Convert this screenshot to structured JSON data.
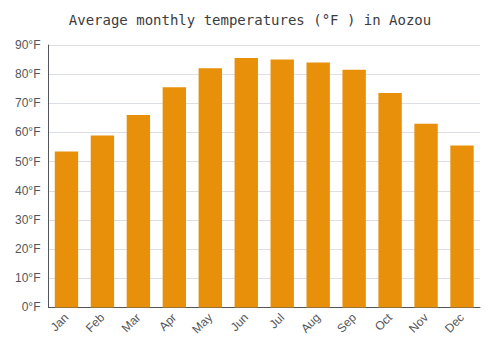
{
  "chart_data": {
    "type": "bar",
    "title": "Average monthly temperatures (°F ) in Aozou",
    "categories": [
      "Jan",
      "Feb",
      "Mar",
      "Apr",
      "May",
      "Jun",
      "Jul",
      "Aug",
      "Sep",
      "Oct",
      "Nov",
      "Dec"
    ],
    "values": [
      53.5,
      59,
      66,
      75.5,
      82,
      85.5,
      85,
      84,
      81.5,
      73.5,
      63,
      55.5
    ],
    "color": "#E8900A",
    "ylim": [
      0,
      90
    ],
    "yticks": [
      {
        "value": 0,
        "label": "0°F"
      },
      {
        "value": 10,
        "label": "10°F"
      },
      {
        "value": 20,
        "label": "20°F"
      },
      {
        "value": 30,
        "label": "30°F"
      },
      {
        "value": 40,
        "label": "40°F"
      },
      {
        "value": 50,
        "label": "50°F"
      },
      {
        "value": 60,
        "label": "60°F"
      },
      {
        "value": 70,
        "label": "70°F"
      },
      {
        "value": 80,
        "label": "80°F"
      },
      {
        "value": 90,
        "label": "90°F"
      }
    ],
    "grid": true
  }
}
